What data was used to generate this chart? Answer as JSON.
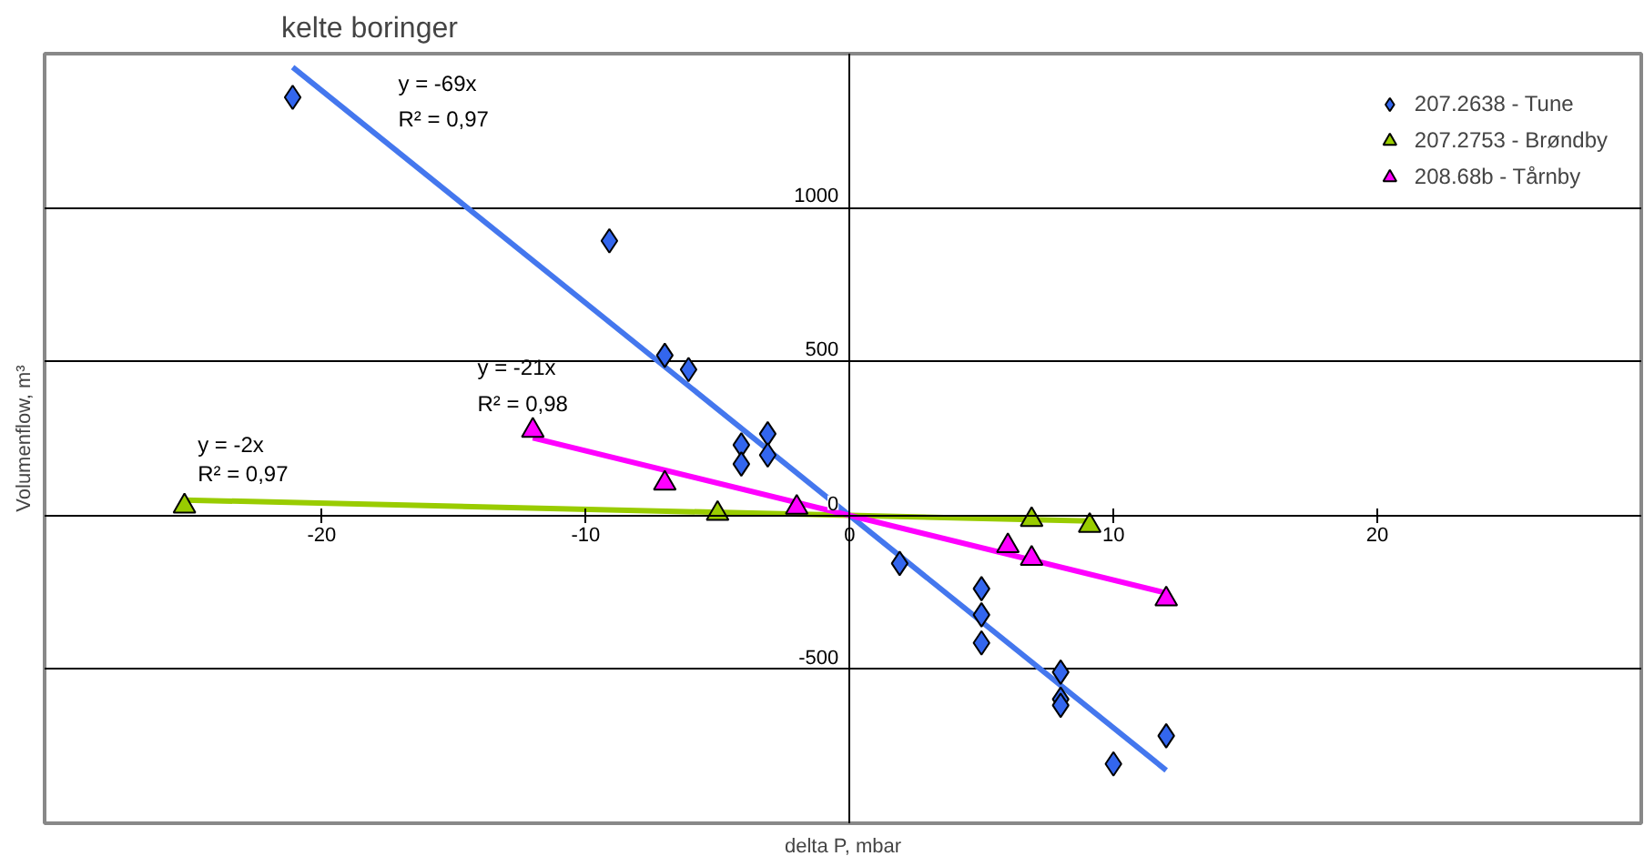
{
  "chart_data": {
    "type": "scatter",
    "title": "kelte boringer",
    "xlabel": "delta P, mbar",
    "ylabel": "Volumenflow, m³",
    "xlim": [
      -30.5,
      30
    ],
    "ylim": [
      -1000,
      1500
    ],
    "xticks": [
      -20,
      -10,
      0,
      10,
      20
    ],
    "yticks": [
      -500,
      0,
      500,
      1000
    ],
    "grid": "y",
    "legend": "top right",
    "series": [
      {
        "type": "line",
        "color": "#4477ee",
        "marker": "none",
        "x": [
          -21.1,
          12
        ],
        "values": [
          1456,
          -828
        ]
      },
      {
        "type": "line",
        "color": "#99cc00",
        "marker": "none",
        "x": [
          -25.2,
          9.1
        ],
        "values": [
          50,
          -18
        ]
      },
      {
        "type": "line",
        "color": "#ff00ff",
        "marker": "none",
        "x": [
          -12,
          12
        ],
        "values": [
          252,
          -252
        ]
      },
      {
        "name": "207.2638 - Tune",
        "color": "#3366ee",
        "marker": "diamond",
        "x": [
          -21.1,
          -9.1,
          -7.0,
          -6.1,
          -4.1,
          -4.1,
          -3.1,
          -3.1,
          1.9,
          5.0,
          5.0,
          5.0,
          8.0,
          8.0,
          8.0,
          10,
          12
        ],
        "values": [
          1358,
          892,
          520,
          474,
          229,
          167,
          265,
          196,
          -156,
          -238,
          -323,
          -414,
          -509,
          -597,
          -617,
          -807,
          -716
        ]
      },
      {
        "name": "207.2753 - Brøndby",
        "color": "#99cc00",
        "marker": "triangle",
        "x": [
          -25.2,
          -5.0,
          6.9,
          9.1
        ],
        "values": [
          30,
          6,
          -14,
          -33
        ]
      },
      {
        "name": "208.68b - Tårnby",
        "color": "#ff00ff",
        "marker": "triangle",
        "x": [
          -12.0,
          -7.0,
          -2.0,
          6.0,
          6.9,
          12.0
        ],
        "values": [
          276,
          104,
          26,
          -99,
          -140,
          -272
        ]
      }
    ],
    "annotations": [
      "y = -69x",
      "R² = 0,97",
      "y = -21x",
      "R² = 0,98",
      "y = -2x",
      "R² = 0,97"
    ]
  }
}
